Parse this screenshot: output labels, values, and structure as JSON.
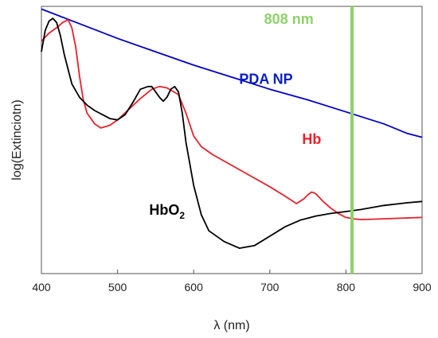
{
  "chart_data": {
    "type": "line",
    "title": "",
    "xlabel": "λ (nm)",
    "ylabel": "log(Extinciotn)",
    "xlim": [
      400,
      900
    ],
    "ylim": [
      0,
      1
    ],
    "x_ticks": [
      400,
      500,
      600,
      700,
      800,
      900
    ],
    "x_tick_labels": [
      "400",
      "500",
      "600",
      "700",
      "800",
      "900"
    ],
    "y_ticks_labels": false,
    "grid": false,
    "legend": "none",
    "series": [
      {
        "name": "PDA NP",
        "color": "#0000cc",
        "x": [
          400,
          450,
          500,
          550,
          600,
          650,
          700,
          750,
          800,
          850,
          880,
          900
        ],
        "y": [
          0.99,
          0.935,
          0.88,
          0.83,
          0.78,
          0.735,
          0.69,
          0.65,
          0.605,
          0.56,
          0.525,
          0.51
        ]
      },
      {
        "name": "Hb",
        "color": "#e8202a",
        "x": [
          400,
          410,
          420,
          428,
          435,
          440,
          445,
          450,
          455,
          460,
          470,
          478,
          490,
          500,
          515,
          530,
          545,
          555,
          565,
          580,
          590,
          600,
          610,
          625,
          650,
          675,
          700,
          720,
          735,
          745,
          750,
          755,
          760,
          770,
          780,
          790,
          800,
          810,
          820,
          850,
          900
        ],
        "y": [
          0.87,
          0.9,
          0.92,
          0.94,
          0.95,
          0.92,
          0.85,
          0.74,
          0.65,
          0.6,
          0.56,
          0.545,
          0.555,
          0.575,
          0.615,
          0.655,
          0.69,
          0.7,
          0.695,
          0.67,
          0.6,
          0.515,
          0.475,
          0.445,
          0.405,
          0.365,
          0.325,
          0.29,
          0.262,
          0.28,
          0.295,
          0.305,
          0.3,
          0.27,
          0.245,
          0.225,
          0.21,
          0.205,
          0.202,
          0.205,
          0.21
        ]
      },
      {
        "name": "HbO2",
        "color": "#000000",
        "x": [
          400,
          405,
          410,
          415,
          420,
          425,
          430,
          440,
          450,
          460,
          470,
          480,
          490,
          500,
          510,
          520,
          530,
          540,
          545,
          550,
          555,
          560,
          565,
          570,
          575,
          580,
          585,
          590,
          600,
          610,
          620,
          640,
          660,
          680,
          700,
          720,
          740,
          760,
          780,
          800,
          820,
          850,
          880,
          900
        ],
        "y": [
          0.83,
          0.91,
          0.945,
          0.955,
          0.94,
          0.89,
          0.82,
          0.71,
          0.66,
          0.63,
          0.61,
          0.595,
          0.58,
          0.575,
          0.595,
          0.64,
          0.69,
          0.7,
          0.7,
          0.68,
          0.66,
          0.645,
          0.66,
          0.69,
          0.7,
          0.68,
          0.6,
          0.49,
          0.33,
          0.22,
          0.16,
          0.12,
          0.095,
          0.105,
          0.14,
          0.175,
          0.2,
          0.215,
          0.225,
          0.232,
          0.24,
          0.255,
          0.265,
          0.27
        ]
      }
    ],
    "marker_line": {
      "x": 808,
      "color": "#8dd16a",
      "label": "808 nm"
    },
    "annotations": {
      "pda": {
        "text": "PDA NP",
        "color": "#0a1fc4",
        "x": 695,
        "y": 0.71
      },
      "hb": {
        "text": "Hb",
        "color": "#e8202a",
        "x": 755,
        "y": 0.485
      },
      "hbo2": {
        "text": "HbO",
        "sub": "2",
        "color": "#000000",
        "x": 565,
        "y": 0.22
      },
      "nm808": {
        "text": "808 nm",
        "color": "#8dd16a",
        "x": 725,
        "y": 0.935
      }
    }
  }
}
